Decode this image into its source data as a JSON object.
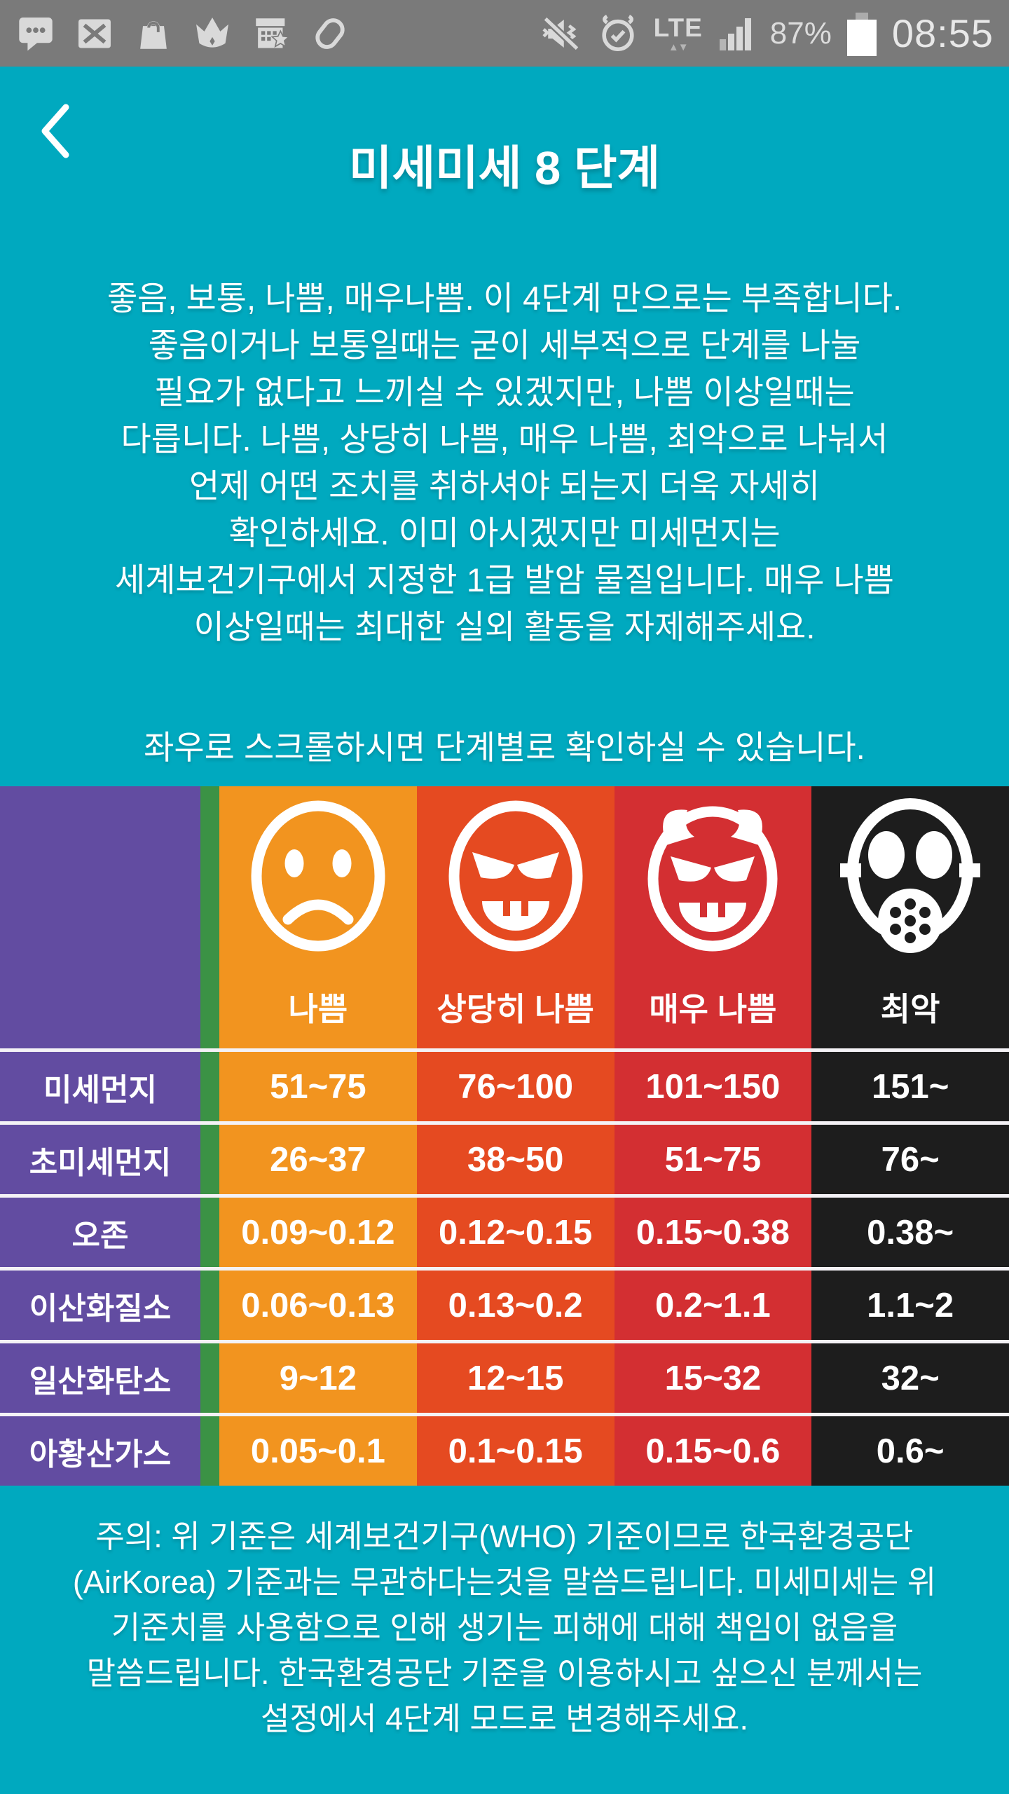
{
  "colors": {
    "background": "#00A9BF",
    "status_bar": "#7A7A7A",
    "status_icon": "#D9D9D9",
    "white_text": "#FFFFFF",
    "separator": "#F4F2F6"
  },
  "status_bar": {
    "time": "08:55",
    "battery_percent": "87%",
    "network_label": "LTE",
    "network_arrows": "▲▼",
    "icons_left": [
      "chat-bubble",
      "message-failed",
      "shopping-bag",
      "crown",
      "building-star",
      "samsung-pay"
    ],
    "icons_right": [
      "vibrate-mute",
      "alarm-clock",
      "lte-network",
      "signal-strength",
      "battery"
    ]
  },
  "header": {
    "title": "미세미세 8 단계"
  },
  "intro": {
    "lines": [
      "좋음, 보통, 나쁨, 매우나쁨. 이 4단계 만으로는 부족합니다.",
      "좋음이거나 보통일때는 굳이 세부적으로 단계를 나눌",
      "필요가 없다고 느끼실 수 있겠지만, 나쁨 이상일때는",
      "다릅니다. 나쁨, 상당히 나쁨, 매우 나쁨, 최악으로 나눠서",
      "언제 어떤 조치를 취하셔야 되는지 더욱 자세히",
      "확인하세요. 이미 아시겠지만 미세먼지는",
      "세계보건기구에서 지정한 1급 발암 물질입니다. 매우 나쁨",
      "이상일때는 최대한 실외 활동을 자제해주세요."
    ]
  },
  "scroll_hint": "좌우로 스크롤하시면 단계별로 확인하실 수 있습니다.",
  "table": {
    "row_header_color": "#624CA1",
    "partial_prev_column_color": "#3B9245",
    "columns": [
      {
        "label": "나쁨",
        "color": "#F2941F",
        "icon": "sad-face"
      },
      {
        "label": "상당히 나쁨",
        "color": "#E54A21",
        "icon": "angry-grin-face"
      },
      {
        "label": "매우 나쁨",
        "color": "#D32F32",
        "icon": "devil-horns-face"
      },
      {
        "label": "최악",
        "color": "#1D1D1D",
        "icon": "gas-mask"
      }
    ],
    "rows": [
      {
        "label": "미세먼지",
        "values": [
          "51~75",
          "76~100",
          "101~150",
          "151~"
        ]
      },
      {
        "label": "초미세먼지",
        "values": [
          "26~37",
          "38~50",
          "51~75",
          "76~"
        ]
      },
      {
        "label": "오존",
        "values": [
          "0.09~0.12",
          "0.12~0.15",
          "0.15~0.38",
          "0.38~"
        ]
      },
      {
        "label": "이산화질소",
        "values": [
          "0.06~0.13",
          "0.13~0.2",
          "0.2~1.1",
          "1.1~2"
        ]
      },
      {
        "label": "일산화탄소",
        "values": [
          "9~12",
          "12~15",
          "15~32",
          "32~"
        ]
      },
      {
        "label": "아황산가스",
        "values": [
          "0.05~0.1",
          "0.1~0.15",
          "0.15~0.6",
          "0.6~"
        ]
      }
    ]
  },
  "footer_note": {
    "lines": [
      "주의: 위 기준은 세계보건기구(WHO) 기준이므로 한국환경공단",
      "(AirKorea) 기준과는 무관하다는것을 말씀드립니다. 미세미세는 위",
      "기준치를 사용함으로 인해 생기는 피해에 대해 책임이 없음을",
      "말씀드립니다. 한국환경공단 기준을 이용하시고 싶으신 분께서는",
      "설정에서 4단계 모드로 변경해주세요."
    ]
  }
}
